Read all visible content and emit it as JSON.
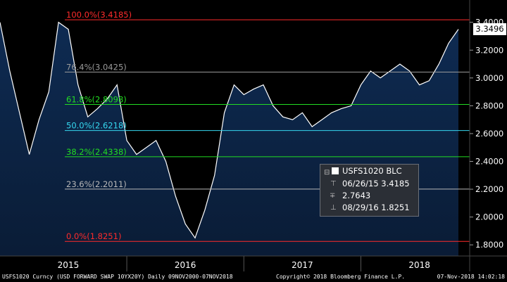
{
  "chart_data": {
    "type": "line",
    "series": [
      {
        "name": "USFS1020 BLC",
        "x": [
          "2014-12",
          "2015-01",
          "2015-02",
          "2015-03",
          "2015-04",
          "2015-05",
          "2015-06",
          "2015-07",
          "2015-08",
          "2015-09",
          "2015-10",
          "2015-11",
          "2015-12",
          "2016-01",
          "2016-02",
          "2016-03",
          "2016-04",
          "2016-05",
          "2016-06",
          "2016-07",
          "2016-08",
          "2016-09",
          "2016-10",
          "2016-11",
          "2016-12",
          "2017-01",
          "2017-02",
          "2017-03",
          "2017-04",
          "2017-05",
          "2017-06",
          "2017-07",
          "2017-08",
          "2017-09",
          "2017-10",
          "2017-11",
          "2017-12",
          "2018-01",
          "2018-02",
          "2018-03",
          "2018-04",
          "2018-05",
          "2018-06",
          "2018-07",
          "2018-08",
          "2018-09",
          "2018-10",
          "2018-11"
        ],
        "values": [
          3.4,
          3.05,
          2.75,
          2.45,
          2.7,
          2.9,
          3.4,
          3.35,
          2.95,
          2.72,
          2.78,
          2.85,
          2.95,
          2.55,
          2.45,
          2.5,
          2.55,
          2.4,
          2.15,
          1.95,
          1.85,
          2.05,
          2.3,
          2.75,
          2.95,
          2.88,
          2.92,
          2.95,
          2.8,
          2.72,
          2.7,
          2.75,
          2.65,
          2.7,
          2.75,
          2.78,
          2.8,
          2.95,
          3.05,
          3.0,
          3.05,
          3.1,
          3.05,
          2.95,
          2.98,
          3.1,
          3.25,
          3.35
        ]
      }
    ],
    "x_tick_labels": [
      "2015",
      "2016",
      "2017",
      "2018"
    ],
    "y_tick_labels": [
      "1.8000",
      "2.0000",
      "2.2000",
      "2.4000",
      "2.6000",
      "2.8000",
      "3.0000",
      "3.2000",
      "3.4000"
    ],
    "ylim": [
      1.72,
      3.52
    ],
    "last_value": "3.3496",
    "fib_levels": [
      {
        "label": "100.0%(3.4185)",
        "value": 3.4185,
        "color": "#ff2b2b"
      },
      {
        "label": "76.4%(3.0425)",
        "value": 3.0425,
        "color": "#9a9a9a"
      },
      {
        "label": "61.8%(2.8098)",
        "value": 2.8098,
        "color": "#22dd22"
      },
      {
        "label": "50.0%(2.6218)",
        "value": 2.6218,
        "color": "#35d8f0"
      },
      {
        "label": "38.2%(2.4338)",
        "value": 2.4338,
        "color": "#22dd22"
      },
      {
        "label": "23.6%(2.2011)",
        "value": 2.2011,
        "color": "#b8b8b8"
      },
      {
        "label": "0.0%(1.8251)",
        "value": 1.8251,
        "color": "#ff2b2b"
      }
    ],
    "legend": {
      "title": "USFS1020 BLC",
      "rows": [
        "06/26/15 3.4185",
        "2.7643",
        "08/29/16 1.8251"
      ]
    },
    "colors": {
      "background": "#000000",
      "area_top": "#0e2b52",
      "area_bottom": "#0a1c36",
      "line": "#ffffff"
    }
  },
  "footer": {
    "left": "USFS1020 Curncy (USD FORWARD SWAP 10YX20Y)  Daily 09NOV2000-07NOV2018",
    "center": "Copyright© 2018 Bloomberg Finance L.P.",
    "right": "07-Nov-2018 14:02:18"
  }
}
